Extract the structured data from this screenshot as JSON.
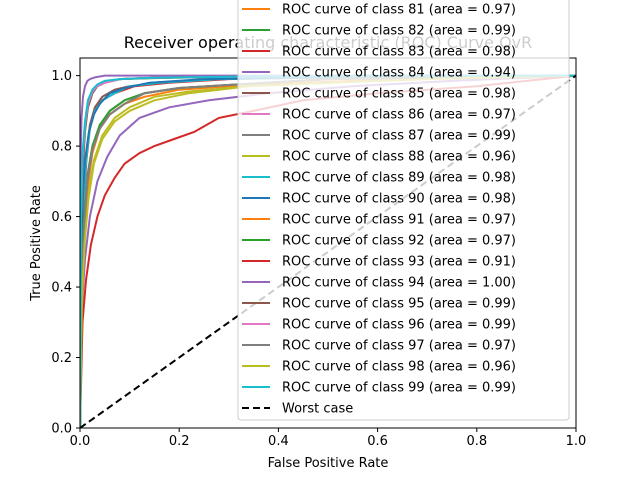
{
  "chart_data": {
    "type": "line",
    "title": "Receiver operating characteristic (ROC) Curve OvR",
    "xlabel": "False Positive Rate",
    "ylabel": "True Positive Rate",
    "xlim": [
      0,
      1
    ],
    "ylim": [
      0,
      1.05
    ],
    "x_ticks": [
      "0.0",
      "0.2",
      "0.4",
      "0.6",
      "0.8",
      "1.0"
    ],
    "y_ticks": [
      "0.0",
      "0.2",
      "0.4",
      "0.6",
      "0.8",
      "1.0"
    ],
    "grid": false,
    "legend_position": "upper-right",
    "legend_note": "Only classes 81–99 and the worst case entry are visible; earlier legend entries are clipped above the figure.",
    "series": [
      {
        "name": "ROC curve of class 81 (area = 0.97)",
        "color": "#ff7f0e",
        "area": 0.97,
        "x": [
          0,
          0.003,
          0.008,
          0.015,
          0.025,
          0.04,
          0.06,
          0.09,
          0.13,
          0.2,
          0.3,
          0.45,
          0.65,
          1
        ],
        "y": [
          0,
          0.42,
          0.58,
          0.7,
          0.79,
          0.85,
          0.89,
          0.92,
          0.94,
          0.96,
          0.97,
          0.98,
          0.99,
          1
        ]
      },
      {
        "name": "ROC curve of class 82 (area = 0.99)",
        "color": "#2ca02c",
        "area": 0.99,
        "x": [
          0,
          0.002,
          0.005,
          0.01,
          0.016,
          0.025,
          0.035,
          0.05,
          0.08,
          0.15,
          0.3,
          0.6,
          1
        ],
        "y": [
          0,
          0.55,
          0.72,
          0.84,
          0.91,
          0.95,
          0.97,
          0.98,
          0.99,
          0.993,
          0.997,
          1,
          1
        ]
      },
      {
        "name": "ROC curve of class 83 (area = 0.98)",
        "color": "#d62728",
        "area": 0.98,
        "x": [
          0,
          0.003,
          0.007,
          0.013,
          0.02,
          0.03,
          0.045,
          0.07,
          0.11,
          0.18,
          0.3,
          0.5,
          1
        ],
        "y": [
          0,
          0.45,
          0.63,
          0.76,
          0.85,
          0.9,
          0.93,
          0.95,
          0.97,
          0.98,
          0.99,
          0.995,
          1
        ]
      },
      {
        "name": "ROC curve of class 84 (area = 0.94)",
        "color": "#9467bd",
        "area": 0.94,
        "x": [
          0,
          0.004,
          0.01,
          0.02,
          0.035,
          0.055,
          0.08,
          0.12,
          0.18,
          0.26,
          0.38,
          0.55,
          0.75,
          1
        ],
        "y": [
          0,
          0.35,
          0.48,
          0.6,
          0.7,
          0.77,
          0.83,
          0.88,
          0.91,
          0.93,
          0.95,
          0.97,
          0.985,
          1
        ]
      },
      {
        "name": "ROC curve of class 85 (area = 0.98)",
        "color": "#8c564b",
        "area": 0.98,
        "x": [
          0,
          0.003,
          0.007,
          0.013,
          0.02,
          0.03,
          0.045,
          0.07,
          0.1,
          0.16,
          0.28,
          0.5,
          1
        ],
        "y": [
          0,
          0.5,
          0.66,
          0.78,
          0.86,
          0.91,
          0.94,
          0.96,
          0.97,
          0.98,
          0.99,
          0.995,
          1
        ]
      },
      {
        "name": "ROC curve of class 86 (area = 0.97)",
        "color": "#e377c2",
        "area": 0.97,
        "x": [
          0,
          0.003,
          0.008,
          0.015,
          0.025,
          0.04,
          0.06,
          0.09,
          0.13,
          0.2,
          0.32,
          0.5,
          1
        ],
        "y": [
          0,
          0.44,
          0.6,
          0.72,
          0.8,
          0.86,
          0.9,
          0.93,
          0.95,
          0.965,
          0.975,
          0.99,
          1
        ]
      },
      {
        "name": "ROC curve of class 87 (area = 0.99)",
        "color": "#7f7f7f",
        "area": 0.99,
        "x": [
          0,
          0.002,
          0.005,
          0.01,
          0.016,
          0.024,
          0.035,
          0.05,
          0.08,
          0.15,
          0.3,
          0.6,
          1
        ],
        "y": [
          0,
          0.58,
          0.75,
          0.86,
          0.92,
          0.95,
          0.97,
          0.98,
          0.99,
          0.994,
          0.997,
          1,
          1
        ]
      },
      {
        "name": "ROC curve of class 88 (area = 0.96)",
        "color": "#bcbd22",
        "area": 0.96,
        "x": [
          0,
          0.004,
          0.009,
          0.017,
          0.028,
          0.045,
          0.07,
          0.1,
          0.15,
          0.22,
          0.34,
          0.5,
          0.7,
          1
        ],
        "y": [
          0,
          0.4,
          0.55,
          0.67,
          0.76,
          0.83,
          0.88,
          0.91,
          0.94,
          0.955,
          0.97,
          0.98,
          0.99,
          1
        ]
      },
      {
        "name": "ROC curve of class 89 (area = 0.98)",
        "color": "#17becf",
        "area": 0.98,
        "x": [
          0,
          0.003,
          0.007,
          0.013,
          0.02,
          0.03,
          0.045,
          0.07,
          0.1,
          0.16,
          0.28,
          0.5,
          1
        ],
        "y": [
          0,
          0.48,
          0.65,
          0.77,
          0.85,
          0.9,
          0.93,
          0.95,
          0.97,
          0.98,
          0.99,
          0.995,
          1
        ]
      },
      {
        "name": "ROC curve of class 90 (area = 0.98)",
        "color": "#1f77b4",
        "area": 0.98,
        "x": [
          0,
          0.003,
          0.006,
          0.01,
          0.018,
          0.028,
          0.04,
          0.06,
          0.09,
          0.14,
          0.25,
          0.45,
          1
        ],
        "y": [
          0,
          0.5,
          0.66,
          0.76,
          0.84,
          0.89,
          0.92,
          0.95,
          0.965,
          0.98,
          0.99,
          0.995,
          1
        ]
      },
      {
        "name": "ROC curve of class 91 (area = 0.97)",
        "color": "#ff7f0e",
        "area": 0.97,
        "x": [
          0,
          0.003,
          0.008,
          0.015,
          0.025,
          0.04,
          0.06,
          0.09,
          0.13,
          0.2,
          0.32,
          0.5,
          1
        ],
        "y": [
          0,
          0.38,
          0.55,
          0.68,
          0.78,
          0.85,
          0.89,
          0.92,
          0.95,
          0.965,
          0.975,
          0.99,
          1
        ]
      },
      {
        "name": "ROC curve of class 92 (area = 0.97)",
        "color": "#2ca02c",
        "area": 0.97,
        "x": [
          0,
          0.003,
          0.008,
          0.015,
          0.025,
          0.04,
          0.06,
          0.09,
          0.13,
          0.2,
          0.32,
          0.5,
          1
        ],
        "y": [
          0,
          0.43,
          0.59,
          0.71,
          0.8,
          0.86,
          0.9,
          0.93,
          0.95,
          0.965,
          0.975,
          0.99,
          1
        ]
      },
      {
        "name": "ROC curve of class 93 (area = 0.91)",
        "color": "#d62728",
        "area": 0.91,
        "x": [
          0,
          0.005,
          0.012,
          0.022,
          0.035,
          0.05,
          0.07,
          0.09,
          0.12,
          0.15,
          0.19,
          0.23,
          0.28,
          0.35,
          0.45,
          0.6,
          0.8,
          1
        ],
        "y": [
          0,
          0.3,
          0.42,
          0.52,
          0.6,
          0.66,
          0.71,
          0.75,
          0.78,
          0.8,
          0.82,
          0.84,
          0.88,
          0.9,
          0.93,
          0.95,
          0.97,
          1
        ]
      },
      {
        "name": "ROC curve of class 94 (area = 1.00)",
        "color": "#9467bd",
        "area": 1.0,
        "x": [
          0,
          0.001,
          0.003,
          0.006,
          0.01,
          0.015,
          0.02,
          0.03,
          0.05,
          0.1,
          1
        ],
        "y": [
          0,
          0.75,
          0.88,
          0.94,
          0.97,
          0.985,
          0.99,
          0.995,
          1,
          1,
          1
        ]
      },
      {
        "name": "ROC curve of class 95 (area = 0.99)",
        "color": "#8c564b",
        "area": 0.99,
        "x": [
          0,
          0.002,
          0.005,
          0.01,
          0.016,
          0.025,
          0.035,
          0.05,
          0.08,
          0.15,
          0.3,
          0.6,
          1
        ],
        "y": [
          0,
          0.56,
          0.73,
          0.85,
          0.91,
          0.95,
          0.97,
          0.98,
          0.99,
          0.994,
          0.997,
          1,
          1
        ]
      },
      {
        "name": "ROC curve of class 96 (area = 0.99)",
        "color": "#e377c2",
        "area": 0.99,
        "x": [
          0,
          0.002,
          0.005,
          0.01,
          0.016,
          0.025,
          0.035,
          0.05,
          0.08,
          0.15,
          0.3,
          0.6,
          1
        ],
        "y": [
          0,
          0.6,
          0.76,
          0.86,
          0.92,
          0.955,
          0.97,
          0.98,
          0.99,
          0.994,
          0.997,
          1,
          1
        ]
      },
      {
        "name": "ROC curve of class 97 (area = 0.97)",
        "color": "#7f7f7f",
        "area": 0.97,
        "x": [
          0,
          0.003,
          0.008,
          0.015,
          0.025,
          0.04,
          0.06,
          0.09,
          0.13,
          0.2,
          0.32,
          0.5,
          1
        ],
        "y": [
          0,
          0.4,
          0.57,
          0.7,
          0.79,
          0.85,
          0.89,
          0.92,
          0.95,
          0.965,
          0.975,
          0.99,
          1
        ]
      },
      {
        "name": "ROC curve of class 98 (area = 0.96)",
        "color": "#bcbd22",
        "area": 0.96,
        "x": [
          0,
          0.004,
          0.009,
          0.017,
          0.028,
          0.045,
          0.07,
          0.1,
          0.15,
          0.22,
          0.34,
          0.5,
          0.7,
          1
        ],
        "y": [
          0,
          0.37,
          0.52,
          0.65,
          0.75,
          0.82,
          0.87,
          0.9,
          0.93,
          0.95,
          0.97,
          0.98,
          0.99,
          1
        ]
      },
      {
        "name": "ROC curve of class 99 (area = 0.99)",
        "color": "#17becf",
        "area": 0.99,
        "x": [
          0,
          0.002,
          0.005,
          0.01,
          0.016,
          0.025,
          0.035,
          0.05,
          0.08,
          0.15,
          0.3,
          0.6,
          1
        ],
        "y": [
          0,
          0.62,
          0.78,
          0.87,
          0.93,
          0.96,
          0.975,
          0.985,
          0.99,
          0.994,
          0.997,
          1,
          1
        ]
      },
      {
        "name": "Worst case",
        "color": "#000000",
        "style": "dashed",
        "x": [
          0,
          1
        ],
        "y": [
          0,
          1
        ]
      }
    ],
    "legend_entries": [
      {
        "label": "ROC curve of class 81 (area = 0.97)",
        "color": "#ff7f0e",
        "style": "solid"
      },
      {
        "label": "ROC curve of class 82 (area = 0.99)",
        "color": "#2ca02c",
        "style": "solid"
      },
      {
        "label": "ROC curve of class 83 (area = 0.98)",
        "color": "#d62728",
        "style": "solid"
      },
      {
        "label": "ROC curve of class 84 (area = 0.94)",
        "color": "#9467bd",
        "style": "solid"
      },
      {
        "label": "ROC curve of class 85 (area = 0.98)",
        "color": "#8c564b",
        "style": "solid"
      },
      {
        "label": "ROC curve of class 86 (area = 0.97)",
        "color": "#e377c2",
        "style": "solid"
      },
      {
        "label": "ROC curve of class 87 (area = 0.99)",
        "color": "#7f7f7f",
        "style": "solid"
      },
      {
        "label": "ROC curve of class 88 (area = 0.96)",
        "color": "#bcbd22",
        "style": "solid"
      },
      {
        "label": "ROC curve of class 89 (area = 0.98)",
        "color": "#17becf",
        "style": "solid"
      },
      {
        "label": "ROC curve of class 90 (area = 0.98)",
        "color": "#1f77b4",
        "style": "solid"
      },
      {
        "label": "ROC curve of class 91 (area = 0.97)",
        "color": "#ff7f0e",
        "style": "solid"
      },
      {
        "label": "ROC curve of class 92 (area = 0.97)",
        "color": "#2ca02c",
        "style": "solid"
      },
      {
        "label": "ROC curve of class 93 (area = 0.91)",
        "color": "#d62728",
        "style": "solid"
      },
      {
        "label": "ROC curve of class 94 (area = 1.00)",
        "color": "#9467bd",
        "style": "solid"
      },
      {
        "label": "ROC curve of class 95 (area = 0.99)",
        "color": "#8c564b",
        "style": "solid"
      },
      {
        "label": "ROC curve of class 96 (area = 0.99)",
        "color": "#e377c2",
        "style": "solid"
      },
      {
        "label": "ROC curve of class 97 (area = 0.97)",
        "color": "#7f7f7f",
        "style": "solid"
      },
      {
        "label": "ROC curve of class 98 (area = 0.96)",
        "color": "#bcbd22",
        "style": "solid"
      },
      {
        "label": "ROC curve of class 99 (area = 0.99)",
        "color": "#17becf",
        "style": "solid"
      },
      {
        "label": "Worst case",
        "color": "#000000",
        "style": "dashed"
      }
    ]
  }
}
